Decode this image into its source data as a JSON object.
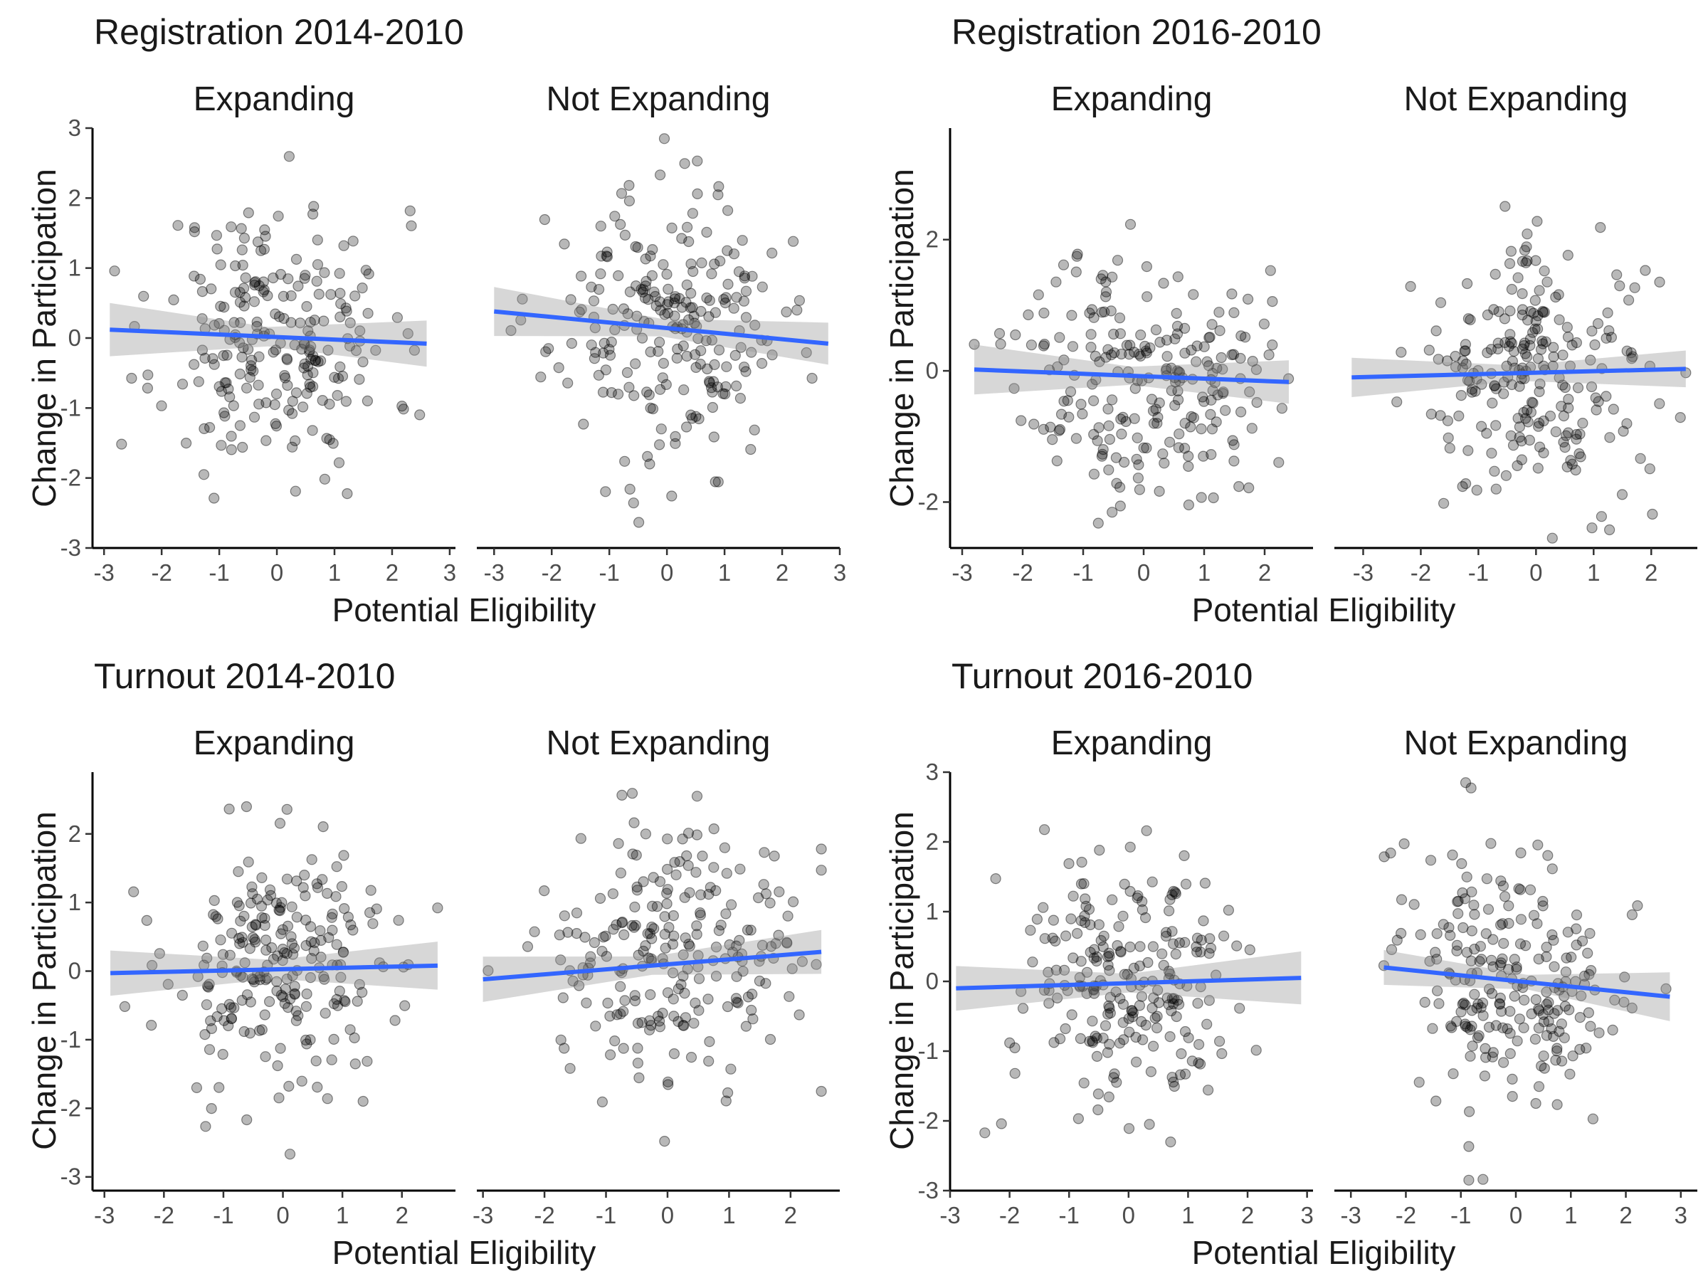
{
  "figure": {
    "point_color": "#000000",
    "fit_color": "#3366FF",
    "band_color": "#999999"
  },
  "chart_data": [
    {
      "type": "scatter",
      "title": "Registration 2014-2010",
      "xlabel": "Potential Eligibility",
      "ylabel": "Change in Participation",
      "ylim": [
        -3,
        3
      ],
      "yticks": [
        3,
        2,
        1,
        0,
        -1,
        -2,
        -3
      ],
      "grid": false,
      "panels": [
        {
          "strip": "Expanding",
          "xlim": [
            -3.2,
            3.1
          ],
          "xticks": [
            -3,
            -2,
            -1,
            0,
            1,
            2,
            3
          ],
          "fit": {
            "x": [
              -2.9,
              2.6
            ],
            "y": [
              0.12,
              -0.08
            ],
            "se_half_width": [
              0.38,
              0.33
            ]
          },
          "n_points": 230,
          "seed": 11
        },
        {
          "strip": "Not Expanding",
          "xlim": [
            -3.3,
            3.0
          ],
          "xticks": [
            -3,
            -2,
            -1,
            0,
            1,
            2,
            3
          ],
          "fit": {
            "x": [
              -3.0,
              2.8
            ],
            "y": [
              0.38,
              -0.08
            ],
            "se_half_width": [
              0.35,
              0.3
            ]
          },
          "n_points": 230,
          "seed": 23
        }
      ]
    },
    {
      "type": "scatter",
      "title": "Registration 2016-2010",
      "xlabel": "Potential Eligibility",
      "ylabel": "Change in Participation",
      "ylim": [
        -2.7,
        3.7
      ],
      "yticks": [
        2,
        0,
        -2
      ],
      "grid": false,
      "panels": [
        {
          "strip": "Expanding",
          "xlim": [
            -3.2,
            2.8
          ],
          "xticks": [
            -3,
            -2,
            -1,
            0,
            1,
            2
          ],
          "fit": {
            "x": [
              -2.8,
              2.4
            ],
            "y": [
              0.02,
              -0.17
            ],
            "se_half_width": [
              0.38,
              0.33
            ]
          },
          "n_points": 230,
          "seed": 37
        },
        {
          "strip": "Not Expanding",
          "xlim": [
            -3.5,
            2.8
          ],
          "xticks": [
            -3,
            -2,
            -1,
            0,
            1,
            2
          ],
          "fit": {
            "x": [
              -3.2,
              2.6
            ],
            "y": [
              -0.1,
              0.03
            ],
            "se_half_width": [
              0.3,
              0.28
            ]
          },
          "n_points": 230,
          "seed": 41
        }
      ]
    },
    {
      "type": "scatter",
      "title": "Turnout 2014-2010",
      "xlabel": "Potential Eligibility",
      "ylabel": "Change in Participation",
      "ylim": [
        -3.2,
        2.9
      ],
      "yticks": [
        2,
        1,
        0,
        -1,
        -2,
        -3
      ],
      "grid": false,
      "panels": [
        {
          "strip": "Expanding",
          "xlim": [
            -3.2,
            2.9
          ],
          "xticks": [
            -3,
            -2,
            -1,
            0,
            1,
            2
          ],
          "fit": {
            "x": [
              -2.9,
              2.6
            ],
            "y": [
              -0.03,
              0.08
            ],
            "se_half_width": [
              0.33,
              0.35
            ]
          },
          "n_points": 230,
          "seed": 53
        },
        {
          "strip": "Not Expanding",
          "xlim": [
            -3.1,
            2.8
          ],
          "xticks": [
            -3,
            -2,
            -1,
            0,
            1,
            2
          ],
          "fit": {
            "x": [
              -3.0,
              2.5
            ],
            "y": [
              -0.12,
              0.28
            ],
            "se_half_width": [
              0.33,
              0.32
            ]
          },
          "n_points": 230,
          "seed": 67
        }
      ]
    },
    {
      "type": "scatter",
      "title": "Turnout 2016-2010",
      "xlabel": "Potential Eligibility",
      "ylabel": "Change in Participation",
      "ylim": [
        -3,
        3
      ],
      "yticks": [
        3,
        2,
        1,
        0,
        -1,
        -2,
        -3
      ],
      "grid": false,
      "panels": [
        {
          "strip": "Expanding",
          "xlim": [
            -3.0,
            3.1
          ],
          "xticks": [
            -3,
            -2,
            -1,
            0,
            1,
            2,
            3
          ],
          "fit": {
            "x": [
              -2.9,
              2.9
            ],
            "y": [
              -0.1,
              0.05
            ],
            "se_half_width": [
              0.32,
              0.38
            ]
          },
          "n_points": 230,
          "seed": 71
        },
        {
          "strip": "Not Expanding",
          "xlim": [
            -3.3,
            3.3
          ],
          "xticks": [
            -3,
            -2,
            -1,
            0,
            1,
            2,
            3
          ],
          "fit": {
            "x": [
              -2.4,
              2.8
            ],
            "y": [
              0.2,
              -0.22
            ],
            "se_half_width": [
              0.25,
              0.35
            ]
          },
          "n_points": 230,
          "seed": 89
        }
      ]
    }
  ]
}
